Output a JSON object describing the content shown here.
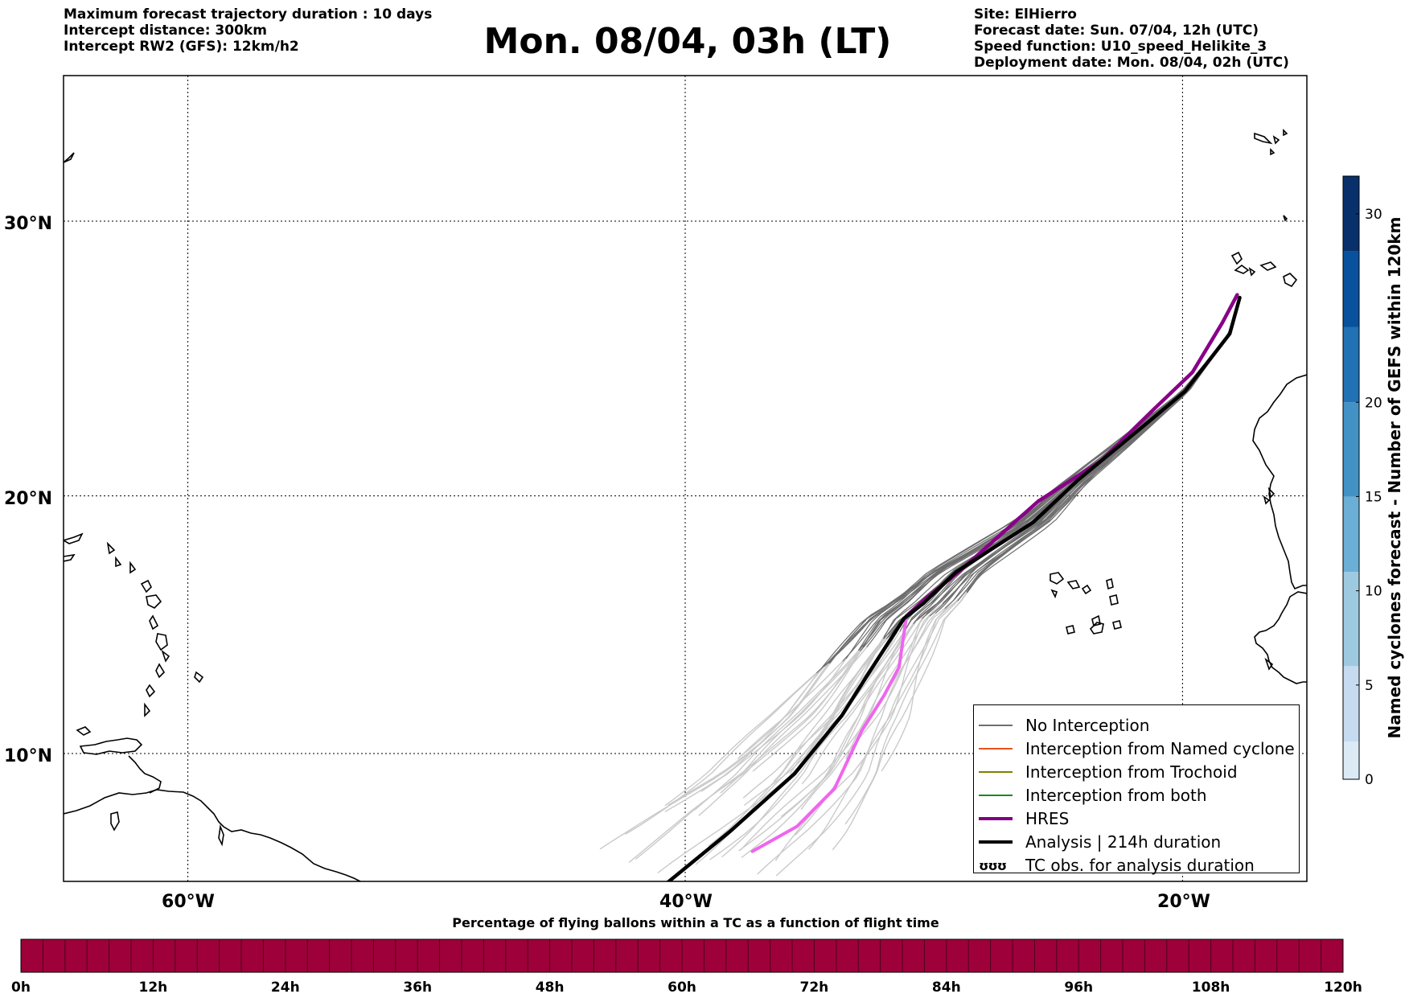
{
  "header_left": [
    "Maximum forecast trajectory duration : 10 days",
    "Intercept distance: 300km",
    "Intercept RW2 (GFS):  12km/h2"
  ],
  "title": "Mon. 08/04, 03h (LT)",
  "header_right": [
    "Site: ElHierro",
    "Forecast date: Sun. 07/04, 12h (UTC)",
    "Speed function: U10_speed_Helikite_3",
    "Deployment date: Mon. 08/04, 02h (UTC)"
  ],
  "map": {
    "lon_range": [
      -65,
      -15
    ],
    "lat_range": [
      4.7,
      34
    ],
    "lat_labels": [
      "30°N",
      "20°N",
      "10°N"
    ],
    "lon_labels": [
      "60°W",
      "40°W",
      "20°W"
    ],
    "grid": "dotted"
  },
  "legend": {
    "items": [
      {
        "label": "No Interception",
        "color": "#6e6e6e",
        "width": 1
      },
      {
        "label": "Interception from Named cyclone",
        "color": "#e8541c",
        "width": 1
      },
      {
        "label": "Interception from Trochoid",
        "color": "#808000",
        "width": 1
      },
      {
        "label": "Interception from both",
        "color": "#1a8a1a",
        "width": 1
      },
      {
        "label": "HRES",
        "color": "#800080",
        "width": 4
      },
      {
        "label": "Analysis | 214h duration",
        "color": "#000000",
        "width": 4
      }
    ],
    "tc_obs": {
      "symbol": "ʊʊʊ",
      "label": "TC obs. for analysis duration"
    }
  },
  "colorbar_right": {
    "label": "Named cyclones forecast - Number of GEFS within 120km",
    "ticks": [
      "0",
      "5",
      "10",
      "15",
      "20",
      "30"
    ],
    "range": [
      0,
      32
    ],
    "colors": [
      "#dceaf6",
      "#c6dbef",
      "#9ecae1",
      "#6baed6",
      "#4292c6",
      "#2171b5",
      "#08519c",
      "#08306b"
    ]
  },
  "colorbar_bottom": {
    "title": "Percentage of flying ballons within a TC as a function of flight time",
    "ticks": [
      "0h",
      "12h",
      "24h",
      "36h",
      "48h",
      "60h",
      "72h",
      "84h",
      "96h",
      "108h",
      "120h"
    ],
    "color": "#9e003a"
  },
  "analysis_track": [
    [
      -40.9,
      4.7
    ],
    [
      -38.2,
      6.9
    ],
    [
      -35.6,
      9.2
    ],
    [
      -33.7,
      11.5
    ],
    [
      -32.6,
      13.2
    ],
    [
      -31.2,
      15.3
    ],
    [
      -30.4,
      15.9
    ],
    [
      -29.1,
      17.1
    ],
    [
      -26.0,
      19.0
    ],
    [
      -24.2,
      20.6
    ],
    [
      -21.2,
      22.9
    ],
    [
      -19.9,
      23.9
    ],
    [
      -18.1,
      26.0
    ],
    [
      -17.7,
      27.3
    ]
  ],
  "hres_track": [
    [
      -37.3,
      6.1
    ],
    [
      -35.5,
      7.1
    ],
    [
      -34.0,
      8.6
    ],
    [
      -32.9,
      10.9
    ],
    [
      -32.0,
      12.3
    ],
    [
      -31.4,
      13.4
    ],
    [
      -31.1,
      15.4
    ],
    [
      -30.3,
      16.1
    ],
    [
      -29.0,
      17.1
    ],
    [
      -25.8,
      19.8
    ],
    [
      -23.3,
      21.3
    ],
    [
      -21.2,
      23.2
    ],
    [
      -19.6,
      24.6
    ],
    [
      -18.4,
      26.4
    ],
    [
      -17.8,
      27.4
    ]
  ]
}
